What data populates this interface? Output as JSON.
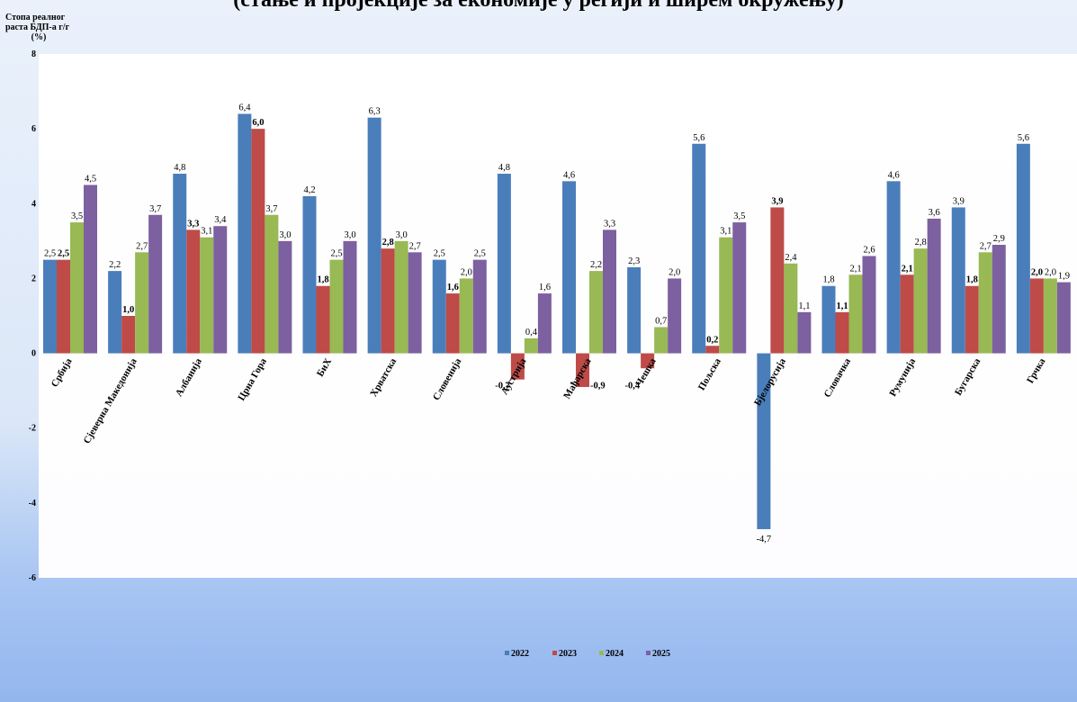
{
  "chart_data": {
    "type": "bar",
    "title": "(стање и пројекције за економије у регији и ширем окружењу)",
    "ylabel_lines": [
      "Стопа реалног",
      "раста БДП-а г/г"
    ],
    "ylabel_unit": "(%)",
    "ylim": [
      -6,
      8
    ],
    "yticks": [
      -6,
      -4,
      -2,
      0,
      2,
      4,
      6,
      8
    ],
    "grid": false,
    "legend_position": "bottom",
    "categories": [
      "Србија",
      "Сјеверна Македонија",
      "Албанија",
      "Црна Гора",
      "БиХ",
      "Хрватска",
      "Словенија",
      "Аустрија",
      "Мађарска",
      "Чешка",
      "Пољска",
      "Бјелорусија",
      "Словачка",
      "Румунија",
      "Бугарска",
      "Грчка"
    ],
    "series": [
      {
        "name": "2022",
        "color": "#4a7ebb",
        "bold_labels": false,
        "values": [
          2.5,
          2.2,
          4.8,
          6.4,
          4.2,
          6.3,
          2.5,
          4.8,
          4.6,
          2.3,
          5.6,
          -4.7,
          1.8,
          4.6,
          3.9,
          5.6
        ],
        "labels": [
          "2,5",
          "2,2",
          "4,8",
          "6,4",
          "4,2",
          "6,3",
          "2,5",
          "4,8",
          "4,6",
          "2,3",
          "5,6",
          "-4,7",
          "1,8",
          "4,6",
          "3,9",
          "5,6"
        ]
      },
      {
        "name": "2023",
        "color": "#be4b48",
        "bold_labels": true,
        "values": [
          2.5,
          1.0,
          3.3,
          6.0,
          1.8,
          2.8,
          1.6,
          -0.7,
          -0.9,
          -0.4,
          0.2,
          3.9,
          1.1,
          2.1,
          1.8,
          2.0
        ],
        "labels": [
          "2,5",
          "1,0",
          "3,3",
          "6,0",
          "1,8",
          "2,8",
          "1,6",
          "-0,7",
          "-0,9",
          "-0,4",
          "0,2",
          "3,9",
          "1,1",
          "2,1",
          "1,8",
          "2,0"
        ]
      },
      {
        "name": "2024",
        "color": "#98b954",
        "bold_labels": false,
        "values": [
          3.5,
          2.7,
          3.1,
          3.7,
          2.5,
          3.0,
          2.0,
          0.4,
          2.2,
          0.7,
          3.1,
          2.4,
          2.1,
          2.8,
          2.7,
          2.0
        ],
        "labels": [
          "3,5",
          "2,7",
          "3,1",
          "3,7",
          "2,5",
          "3,0",
          "2,0",
          "0,4",
          "2,2",
          "0,7",
          "3,1",
          "2,4",
          "2,1",
          "2,8",
          "2,7",
          "2,0"
        ]
      },
      {
        "name": "2025",
        "color": "#7d60a0",
        "bold_labels": false,
        "values": [
          4.5,
          3.7,
          3.4,
          3.0,
          3.0,
          2.7,
          2.5,
          1.6,
          3.3,
          2.0,
          3.5,
          1.1,
          2.6,
          3.6,
          2.9,
          1.9
        ],
        "labels": [
          "4,5",
          "3,7",
          "3,4",
          "3,0",
          "3,0",
          "2,7",
          "2,5",
          "1,6",
          "3,3",
          "2,0",
          "3,5",
          "1,1",
          "2,6",
          "3,6",
          "2,9",
          "1,9"
        ]
      }
    ]
  }
}
